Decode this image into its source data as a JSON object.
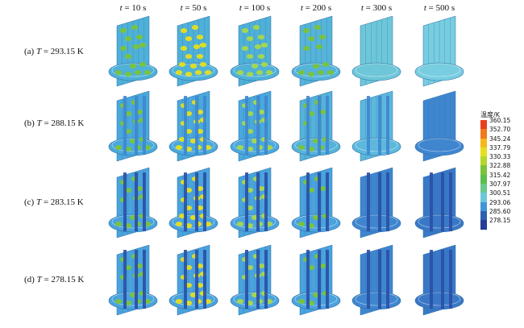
{
  "columns": [
    {
      "t": "t",
      "eq": " = 10 s"
    },
    {
      "t": "t",
      "eq": " = 50 s"
    },
    {
      "t": "t",
      "eq": " = 100 s"
    },
    {
      "t": "t",
      "eq": " = 200 s"
    },
    {
      "t": "t",
      "eq": " = 300 s"
    },
    {
      "t": "t",
      "eq": " = 500 s"
    }
  ],
  "rows": [
    {
      "prefix": "(a) ",
      "T": "T",
      "eq": " = 293.15 K"
    },
    {
      "prefix": "(b) ",
      "T": "T",
      "eq": " = 288.15 K"
    },
    {
      "prefix": "(c) ",
      "T": "T",
      "eq": " = 283.15 K"
    },
    {
      "prefix": "(d) ",
      "T": "T",
      "eq": " = 278.15 K"
    }
  ],
  "legend": {
    "title": "温度/K",
    "ticks": [
      "360.15",
      "352.70",
      "345.24",
      "337.79",
      "330.33",
      "322.88",
      "315.42",
      "307.97",
      "300.51",
      "293.06",
      "285.60",
      "278.15"
    ],
    "colors": [
      "#e8401f",
      "#f2781c",
      "#f5b718",
      "#e5df1e",
      "#b4d62a",
      "#79c439",
      "#5cbd4f",
      "#6cc88d",
      "#6ec7d8",
      "#3f96d6",
      "#2f5fb0",
      "#253d96"
    ]
  },
  "palette": {
    "blue": "#4aa3dc",
    "cyan": "#6ec7d8",
    "green": "#79c439",
    "lightgreen": "#a8d84a",
    "yellow": "#e5df1e",
    "darkblue": "#2a4fa6",
    "midblue": "#3f86cf"
  }
}
